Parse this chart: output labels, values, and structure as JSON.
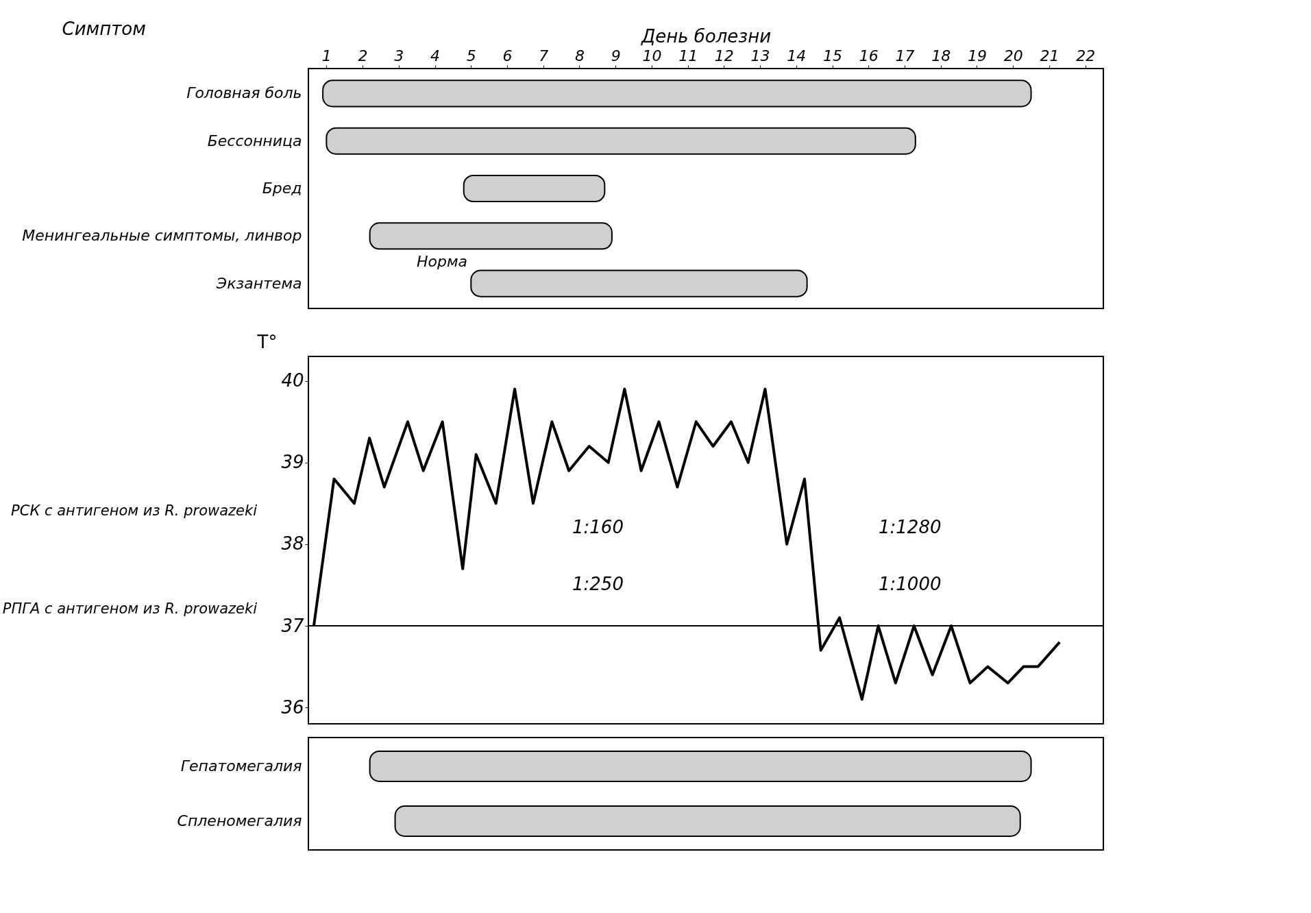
{
  "chart_data": [
    {
      "type": "bar",
      "orientation": "horizontal",
      "xlabel": "День болезни",
      "ylabel": "Симптом",
      "categories": [
        "Головная боль",
        "Бессонница",
        "Бред",
        "Менингеальные симптомы, линвор",
        "Экзантема"
      ],
      "base": [
        0.9,
        1.0,
        4.8,
        2.2,
        5.0
      ],
      "values": [
        19.6,
        16.3,
        3.9,
        6.7,
        9.3
      ],
      "color": "#d0d0d0",
      "xlim": [
        0.5,
        22.5
      ],
      "xticks": [
        1,
        2,
        3,
        4,
        5,
        6,
        7,
        8,
        9,
        10,
        11,
        12,
        13,
        14,
        15,
        16,
        17,
        18,
        19,
        20,
        21,
        22
      ],
      "annotations": [
        "Норма"
      ]
    },
    {
      "type": "line",
      "ylabel": "T°",
      "x": [
        0.65,
        1.21,
        1.77,
        2.19,
        2.6,
        3.25,
        3.68,
        4.21,
        4.77,
        5.14,
        5.69,
        6.21,
        6.72,
        7.24,
        7.71,
        8.27,
        8.8,
        9.25,
        9.71,
        10.2,
        10.71,
        11.23,
        11.7,
        12.2,
        12.67,
        13.14,
        13.74,
        14.23,
        14.68,
        15.2,
        15.82,
        16.27,
        16.75,
        17.26,
        17.77,
        18.29,
        18.81,
        19.3,
        19.86,
        20.29,
        20.69,
        21.29
      ],
      "values": [
        37.0,
        38.8,
        38.5,
        39.3,
        38.7,
        39.5,
        38.9,
        39.5,
        37.7,
        39.1,
        38.5,
        39.9,
        38.5,
        39.5,
        38.9,
        39.2,
        39.0,
        39.9,
        38.9,
        39.5,
        38.7,
        39.5,
        39.2,
        39.5,
        39.0,
        39.9,
        38.0,
        38.8,
        36.7,
        37.1,
        36.1,
        37.0,
        36.3,
        37.0,
        36.4,
        37.0,
        36.3,
        36.5,
        36.3,
        36.5,
        36.5,
        36.8
      ],
      "color": "#000000",
      "xlim": [
        0.5,
        22.5
      ],
      "ylim": [
        35.8,
        40.3
      ],
      "yticks": [
        36,
        37,
        38,
        39,
        40
      ],
      "tick_labels": "y",
      "ref_lines": [
        {
          "axis": "y",
          "value": 37
        }
      ],
      "annotations": [
        "1:160",
        "1:250",
        "1:1280",
        "1:1000",
        "РСК с антигеном из R. prowazeki",
        "РПГА с антигеном из R. prowazeki"
      ]
    },
    {
      "type": "bar",
      "orientation": "horizontal",
      "categories": [
        "Гепатомегалия",
        "Спленомегалия"
      ],
      "base": [
        2.2,
        2.9
      ],
      "values": [
        18.3,
        17.3
      ],
      "color": "#d0d0d0",
      "xlim": [
        0.5,
        22.5
      ],
      "tick_labels": "y"
    }
  ]
}
